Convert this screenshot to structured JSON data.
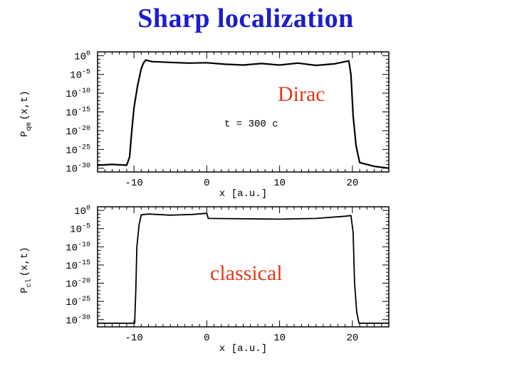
{
  "title": "Sharp localization",
  "chart_data": [
    {
      "type": "line",
      "panel": "top",
      "xlabel": "x [a.u.]",
      "ylabel": "P_qm(x,t)",
      "ylabel_main": "P",
      "ylabel_sub": "qm",
      "ylabel_args": "(x,t)",
      "y_scale": "log",
      "xlim": [
        -15,
        25
      ],
      "ylim_exp": [
        -31,
        1
      ],
      "x_ticks": [
        -10,
        0,
        10,
        20
      ],
      "x_tick_labels": [
        "-10",
        "0",
        "10",
        "20"
      ],
      "y_tick_exps": [
        0,
        -5,
        -10,
        -15,
        -20,
        -25,
        -30
      ],
      "y_tick_labels": [
        "0",
        "-5",
        "-10",
        "-15",
        "-20",
        "-25",
        "-30"
      ],
      "annotation_label": "Dirac",
      "time_label": "t = 300 c",
      "series": [
        {
          "x": [
            -15,
            -13,
            -11,
            -10.6,
            -10.3,
            -10,
            -9.5,
            -9,
            -8.7,
            -8.4,
            -7.5,
            -5,
            -2.5,
            0,
            2.5,
            5,
            7.5,
            10,
            12.5,
            15,
            17.5,
            19.5,
            19.8,
            20.1,
            20.5,
            21,
            23,
            25
          ],
          "log10_y": [
            -29.2,
            -29,
            -29.2,
            -27,
            -20,
            -14,
            -8,
            -3.5,
            -2,
            -1.2,
            -1.6,
            -1.8,
            -2,
            -1.9,
            -2.3,
            -2.5,
            -2.1,
            -2.5,
            -2,
            -2.6,
            -2.2,
            -1.4,
            -5,
            -16,
            -24,
            -28.5,
            -29.5,
            -30
          ]
        }
      ]
    },
    {
      "type": "line",
      "panel": "bottom",
      "xlabel": "x [a.u.]",
      "ylabel": "P_cl(x,t)",
      "ylabel_main": "P",
      "ylabel_sub": "cl",
      "ylabel_args": "(x,t)",
      "y_scale": "log",
      "xlim": [
        -15,
        25
      ],
      "ylim_exp": [
        -32,
        1
      ],
      "x_ticks": [
        -10,
        0,
        10,
        20
      ],
      "x_tick_labels": [
        "-10",
        "0",
        "10",
        "20"
      ],
      "y_tick_exps": [
        0,
        -5,
        -10,
        -15,
        -20,
        -25,
        -30
      ],
      "y_tick_labels": [
        "0",
        "-5",
        "-10",
        "-15",
        "-20",
        "-25",
        "-30"
      ],
      "annotation_label": "classical",
      "series": [
        {
          "x": [
            -15,
            -9.9,
            -9.75,
            -9.6,
            -9.3,
            -9,
            -8,
            -5,
            -2,
            0,
            0.2,
            5,
            10,
            15,
            19,
            19.8,
            20.1,
            20.3,
            20.6,
            20.9,
            25
          ],
          "log10_y": [
            -31,
            -31,
            -22,
            -10,
            -4,
            -1.2,
            -1,
            -1.3,
            -1.1,
            -0.8,
            -2.2,
            -2.3,
            -2.4,
            -2.2,
            -1.6,
            -1.4,
            -6,
            -20,
            -28,
            -31,
            -31
          ]
        }
      ]
    }
  ]
}
